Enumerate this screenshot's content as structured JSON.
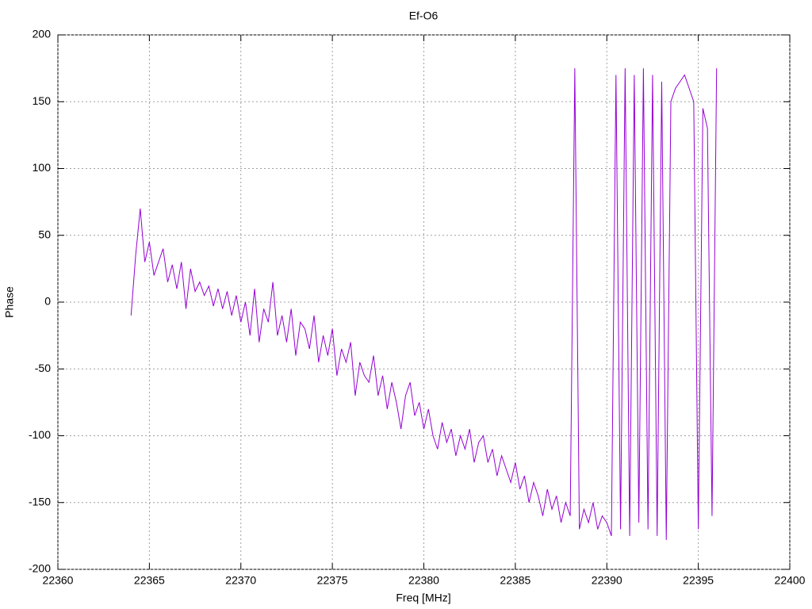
{
  "chart_data": {
    "type": "line",
    "title": "Ef-O6",
    "x_label": "Freq [MHz]",
    "y_label": "Phase",
    "xlim": [
      22360,
      22400
    ],
    "xticks": [
      22360,
      22365,
      22370,
      22375,
      22380,
      22385,
      22390,
      22395,
      22400
    ],
    "ylim": [
      -200,
      200
    ],
    "yticks": [
      -200,
      -150,
      -100,
      -50,
      0,
      50,
      100,
      150,
      200
    ],
    "grid": true,
    "x": [
      22364.0,
      22364.25,
      22364.5,
      22364.75,
      22365.0,
      22365.25,
      22365.5,
      22365.75,
      22366.0,
      22366.25,
      22366.5,
      22366.75,
      22367.0,
      22367.25,
      22367.5,
      22367.75,
      22368.0,
      22368.25,
      22368.5,
      22368.75,
      22369.0,
      22369.25,
      22369.5,
      22369.75,
      22370.0,
      22370.25,
      22370.5,
      22370.75,
      22371.0,
      22371.25,
      22371.5,
      22371.75,
      22372.0,
      22372.25,
      22372.5,
      22372.75,
      22373.0,
      22373.25,
      22373.5,
      22373.75,
      22374.0,
      22374.25,
      22374.5,
      22374.75,
      22375.0,
      22375.25,
      22375.5,
      22375.75,
      22376.0,
      22376.25,
      22376.5,
      22376.75,
      22377.0,
      22377.25,
      22377.5,
      22377.75,
      22378.0,
      22378.25,
      22378.5,
      22378.75,
      22379.0,
      22379.25,
      22379.5,
      22379.75,
      22380.0,
      22380.25,
      22380.5,
      22380.75,
      22381.0,
      22381.25,
      22381.5,
      22381.75,
      22382.0,
      22382.25,
      22382.5,
      22382.75,
      22383.0,
      22383.25,
      22383.5,
      22383.75,
      22384.0,
      22384.25,
      22384.5,
      22384.75,
      22385.0,
      22385.25,
      22385.5,
      22385.75,
      22386.0,
      22386.25,
      22386.5,
      22386.75,
      22387.0,
      22387.25,
      22387.5,
      22387.75,
      22388.0,
      22388.25,
      22388.5,
      22388.75,
      22389.0,
      22389.25,
      22389.5,
      22389.75,
      22390.0,
      22390.25,
      22390.5,
      22390.75,
      22391.0,
      22391.25,
      22391.5,
      22391.75,
      22392.0,
      22392.25,
      22392.5,
      22392.75,
      22393.0,
      22393.25,
      22393.5,
      22393.75,
      22394.0,
      22394.25,
      22394.5,
      22394.75,
      22395.0,
      22395.25,
      22395.5,
      22395.75,
      22396.0
    ],
    "series": [
      {
        "color": "#9400d3",
        "values": [
          -10,
          35,
          70,
          30,
          45,
          20,
          30,
          40,
          15,
          28,
          10,
          30,
          -5,
          25,
          8,
          15,
          5,
          12,
          -3,
          10,
          -5,
          8,
          -10,
          5,
          -15,
          0,
          -25,
          10,
          -30,
          -5,
          -15,
          15,
          -25,
          -10,
          -30,
          -5,
          -40,
          -15,
          -20,
          -35,
          -10,
          -45,
          -25,
          -40,
          -20,
          -55,
          -35,
          -45,
          -30,
          -70,
          -45,
          -55,
          -60,
          -40,
          -70,
          -55,
          -80,
          -60,
          -75,
          -95,
          -70,
          -60,
          -85,
          -75,
          -95,
          -80,
          -100,
          -110,
          -90,
          -105,
          -95,
          -115,
          -100,
          -110,
          -95,
          -120,
          -105,
          -100,
          -120,
          -110,
          -130,
          -115,
          -125,
          -135,
          -120,
          -140,
          -130,
          -150,
          -135,
          -145,
          -160,
          -140,
          -155,
          -145,
          -165,
          -150,
          -160,
          175,
          -170,
          -155,
          -165,
          -150,
          -170,
          -160,
          -165,
          -175,
          170,
          -170,
          175,
          -175,
          170,
          -165,
          175,
          -170,
          170,
          -175,
          165,
          -178,
          150,
          160,
          165,
          170,
          160,
          150,
          -170,
          145,
          130,
          -160,
          175
        ]
      }
    ]
  }
}
